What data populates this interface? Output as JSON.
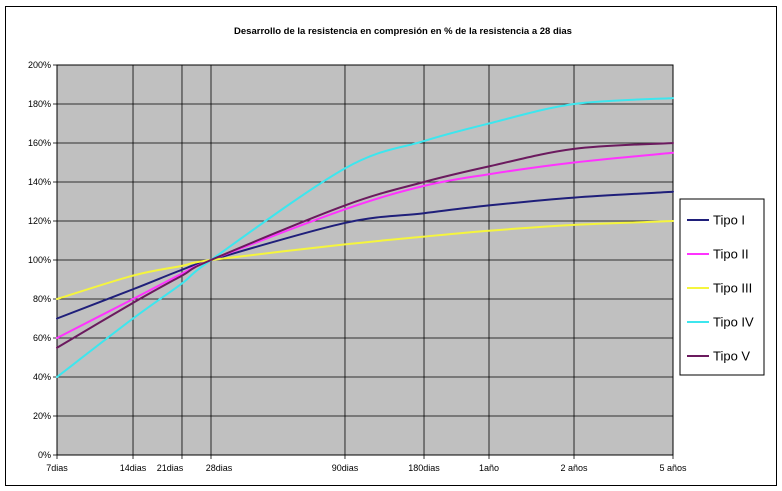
{
  "chart_data": {
    "type": "line",
    "title": "Desarrollo de la resistencia en compresión en % de la resistencia a 28 dias",
    "xlabel": "",
    "ylabel": "",
    "x": [
      "7dias",
      "14dias",
      "21dias",
      "28dias",
      "90dias",
      "180dias",
      "1año",
      "2 años",
      "5 años"
    ],
    "y_ticks": [
      "0%",
      "20%",
      "40%",
      "60%",
      "80%",
      "100%",
      "120%",
      "140%",
      "160%",
      "180%",
      "200%"
    ],
    "ylim": [
      0,
      200
    ],
    "grid": true,
    "plot_background": "#c0c0c0",
    "legend_position": "right",
    "series": [
      {
        "name": "Tipo I",
        "color": "#1f1f7a",
        "values": [
          70,
          85,
          95,
          100,
          119,
          124,
          128,
          132,
          135
        ]
      },
      {
        "name": "Tipo II",
        "color": "#ff33ff",
        "values": [
          60,
          80,
          93,
          100,
          126,
          138,
          144,
          150,
          155
        ]
      },
      {
        "name": "Tipo III",
        "color": "#f5f53d",
        "values": [
          80,
          92,
          97,
          100,
          108,
          112,
          115,
          118,
          120
        ]
      },
      {
        "name": "Tipo IV",
        "color": "#3de6ee",
        "values": [
          40,
          70,
          88,
          100,
          147,
          161,
          170,
          180,
          183
        ]
      },
      {
        "name": "Tipo V",
        "color": "#6b1a5e",
        "values": [
          55,
          78,
          92,
          100,
          128,
          140,
          148,
          157,
          160
        ]
      }
    ]
  }
}
